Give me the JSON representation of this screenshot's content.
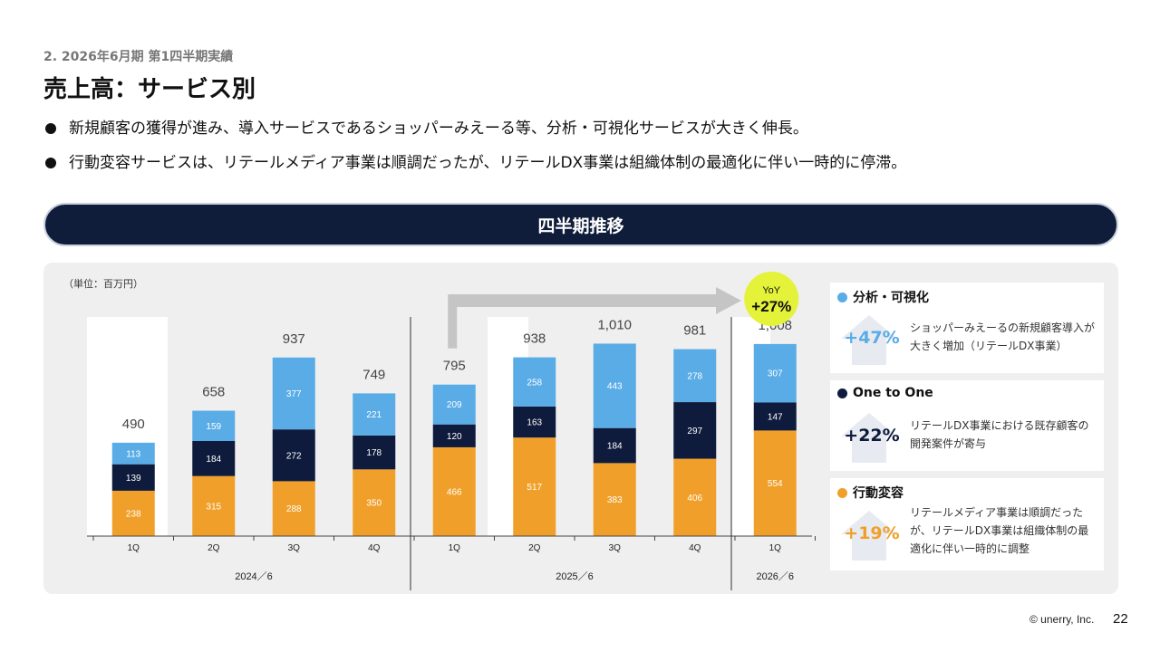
{
  "header": {
    "section": "2. 2026年6月期 第1四半期実績",
    "title": "売上高：サービス別"
  },
  "bullets": [
    "新規顧客の獲得が進み、導入サービスであるショッパーみえーる等、分析・可視化サービスが大きく伸長。",
    "行動変容サービスは、リテールメディア事業は順調だったが、リテールDX事業は組織体制の最適化に伴い一時的に停滞。"
  ],
  "banner": "四半期推移",
  "chart_data": {
    "type": "bar",
    "stacked": true,
    "unit_label": "（単位：百万円）",
    "categories": [
      "1Q",
      "2Q",
      "3Q",
      "4Q",
      "1Q",
      "2Q",
      "3Q",
      "4Q",
      "1Q"
    ],
    "groups": [
      {
        "label": "2024／6",
        "start": 0,
        "end": 3
      },
      {
        "label": "2025／6",
        "start": 4,
        "end": 7
      },
      {
        "label": "2026／6",
        "start": 8,
        "end": 8
      }
    ],
    "series": [
      {
        "key": "koudou",
        "color": "#f0a02a",
        "values": [
          238,
          315,
          288,
          350,
          466,
          517,
          383,
          406,
          554
        ]
      },
      {
        "key": "one",
        "color": "#0f1b3c",
        "values": [
          139,
          184,
          272,
          178,
          120,
          163,
          184,
          297,
          147
        ]
      },
      {
        "key": "bunseki",
        "color": "#5aace6",
        "values": [
          113,
          159,
          377,
          221,
          209,
          258,
          443,
          278,
          307
        ]
      }
    ],
    "totals": [
      "490",
      "658",
      "937",
      "749",
      "795",
      "938",
      "1,010",
      "981",
      "1,008"
    ],
    "yoy": {
      "label": "YoY",
      "value": "+27%"
    },
    "ylim": [
      0,
      1150
    ]
  },
  "legend_cards": [
    {
      "title": "分析・可視化",
      "color": "#5aace6",
      "pct": "+47%",
      "pct_color": "#5aace6",
      "desc": "ショッパーみえーるの新規顧客導入が大きく増加（リテールDX事業）"
    },
    {
      "title": "One to One",
      "color": "#0f1b3c",
      "pct": "+22%",
      "pct_color": "#0f1b3c",
      "desc": "リテールDX事業における既存顧客の開発案件が寄与"
    },
    {
      "title": "行動変容",
      "color": "#f0a02a",
      "pct": "+19%",
      "pct_color": "#f0a02a",
      "desc": "リテールメディア事業は順調だったが、リテールDX事業は組織体制の最適化に伴い一時的に調整"
    }
  ],
  "footer": {
    "copyright": "© unerry, Inc.",
    "page_number": "22"
  }
}
